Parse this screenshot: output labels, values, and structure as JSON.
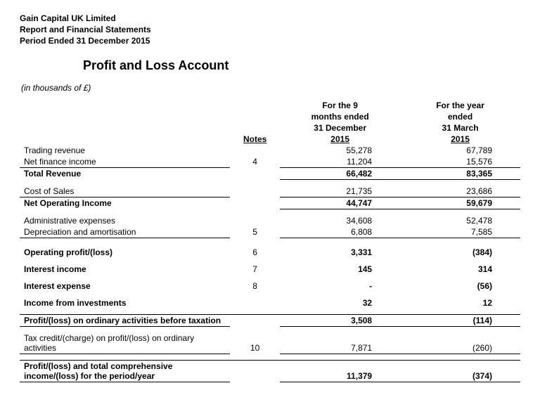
{
  "header": {
    "line1": "Gain Capital UK Limited",
    "line2": "Report and Financial Statements",
    "line3": "Period Ended 31 December 2015"
  },
  "title": "Profit and Loss Account",
  "units": "(in thousands of £)",
  "columns": {
    "notes": "Notes",
    "period1": {
      "l1": "For the 9",
      "l2": "months ended",
      "l3": "31 December",
      "l4": "2015"
    },
    "period2": {
      "l1": "For the year",
      "l2": "ended",
      "l3": "31 March",
      "l4": "2015"
    }
  },
  "rows": {
    "trading_revenue": {
      "label": "Trading revenue",
      "note": "",
      "p1": "55,278",
      "p2": "67,789"
    },
    "net_fin_income": {
      "label": "Net finance income",
      "note": "4",
      "p1": "11,204",
      "p2": "15,576"
    },
    "total_revenue": {
      "label": "Total Revenue",
      "note": "",
      "p1": "66,482",
      "p2": "83,365"
    },
    "cost_of_sales": {
      "label": "Cost of Sales",
      "note": "",
      "p1": "21,735",
      "p2": "23,686"
    },
    "net_op_income": {
      "label": "Net Operating Income",
      "note": "",
      "p1": "44,747",
      "p2": "59,679"
    },
    "admin_exp": {
      "label": "Administrative expenses",
      "note": "",
      "p1": "34,608",
      "p2": "52,478"
    },
    "dep_amort": {
      "label": "Depreciation and amortisation",
      "note": "5",
      "p1": "6,808",
      "p2": "7,585"
    },
    "op_profit": {
      "label": "Operating profit/(loss)",
      "note": "6",
      "p1": "3,331",
      "p2": "(384)"
    },
    "int_income": {
      "label": "Interest income",
      "note": "7",
      "p1": "145",
      "p2": "314"
    },
    "int_expense": {
      "label": "Interest expense",
      "note": "8",
      "p1": "-",
      "p2": "(56)"
    },
    "inv_income": {
      "label": "Income from investments",
      "note": "",
      "p1": "32",
      "p2": "12"
    },
    "pbt": {
      "label": "Profit/(loss) on ordinary activities before taxation",
      "note": "",
      "p1": "3,508",
      "p2": "(114)"
    },
    "tax": {
      "label": "Tax credit/(charge) on profit/(loss) on ordinary activities",
      "note": "10",
      "p1": "7,871",
      "p2": "(260)"
    },
    "total_ci": {
      "label": "Profit/(loss) and total comprehensive income/(loss) for the period/year",
      "note": "",
      "p1": "11,379",
      "p2": "(374)"
    }
  }
}
